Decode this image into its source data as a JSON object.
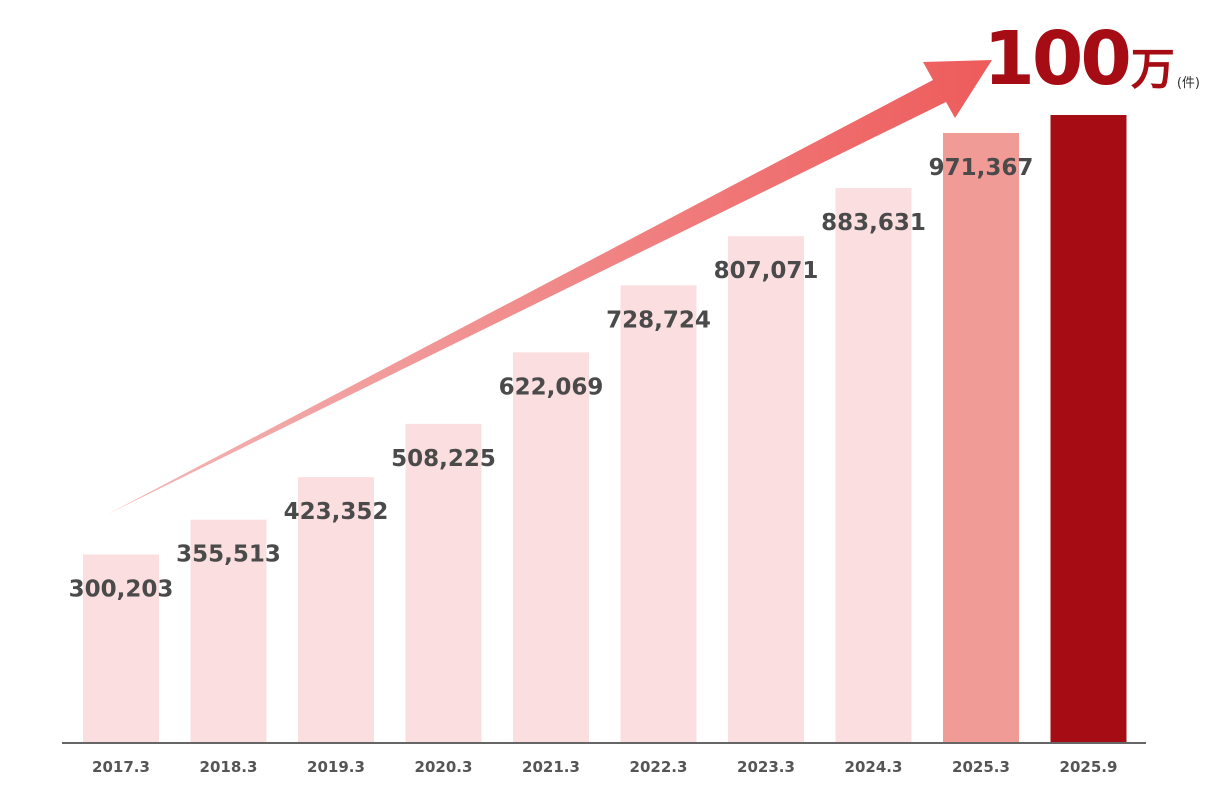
{
  "headline": {
    "number": "100",
    "unit": "万",
    "suffix": "(件)"
  },
  "colors": {
    "bar_default": "#fbdedf",
    "bar_highlight": "#f19b97",
    "bar_target": "#a50c14",
    "arrow_start": "#f3b8b8",
    "arrow_end": "#ee5b5b",
    "axis": "#666666",
    "headline": "#a50c14"
  },
  "chart_data": {
    "type": "bar",
    "categories": [
      "2017.3",
      "2018.3",
      "2019.3",
      "2020.3",
      "2021.3",
      "2022.3",
      "2023.3",
      "2024.3",
      "2025.3",
      "2025.9"
    ],
    "values": [
      300203,
      355513,
      423352,
      508225,
      622069,
      728724,
      807071,
      883631,
      971367,
      1000000
    ],
    "value_labels": [
      "300,203",
      "355,513",
      "423,352",
      "508,225",
      "622,069",
      "728,724",
      "807,071",
      "883,631",
      "971,367",
      ""
    ],
    "bar_styles": [
      "default",
      "default",
      "default",
      "default",
      "default",
      "default",
      "default",
      "default",
      "highlight",
      "target"
    ],
    "title": "",
    "xlabel": "",
    "ylabel": "",
    "ylim": [
      0,
      1000000
    ],
    "grid": false,
    "legend": "none",
    "annotation": "upward-trend-arrow"
  }
}
